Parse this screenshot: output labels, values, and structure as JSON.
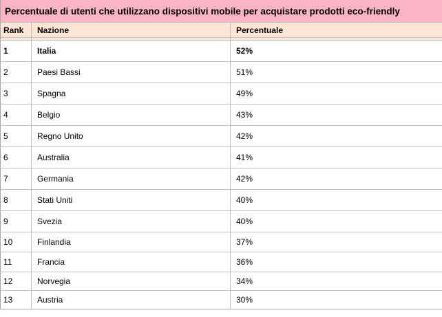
{
  "colors": {
    "title_bg": "#FBB4C5",
    "header_bg": "#FCE4D6",
    "grid_border": "#BFBFBF",
    "outer_border": "#A6A6A6",
    "text": "#000000"
  },
  "chart_data": {
    "type": "table",
    "title": "Percentuale di utenti che utilizzano dispositivi mobile per acquistare prodotti eco-friendly",
    "columns": [
      "Rank",
      "Nazione",
      "Percentuale"
    ],
    "rows": [
      {
        "rank": "1",
        "nazione": "Italia",
        "percentuale": "52%",
        "bold": true
      },
      {
        "rank": "2",
        "nazione": "Paesi Bassi",
        "percentuale": "51%",
        "bold": false
      },
      {
        "rank": "3",
        "nazione": "Spagna",
        "percentuale": "49%",
        "bold": false
      },
      {
        "rank": "4",
        "nazione": "Belgio",
        "percentuale": "43%",
        "bold": false
      },
      {
        "rank": "5",
        "nazione": "Regno Unito",
        "percentuale": "42%",
        "bold": false
      },
      {
        "rank": "6",
        "nazione": "Australia",
        "percentuale": "41%",
        "bold": false
      },
      {
        "rank": "7",
        "nazione": "Germania",
        "percentuale": "42%",
        "bold": false
      },
      {
        "rank": "8",
        "nazione": "Stati Uniti",
        "percentuale": "40%",
        "bold": false
      },
      {
        "rank": "9",
        "nazione": "Svezia",
        "percentuale": "40%",
        "bold": false
      },
      {
        "rank": "10",
        "nazione": "Finlandia",
        "percentuale": "37%",
        "bold": false
      },
      {
        "rank": "11",
        "nazione": "Francia",
        "percentuale": "36%",
        "bold": false
      },
      {
        "rank": "12",
        "nazione": "Norvegia",
        "percentuale": "34%",
        "bold": false
      },
      {
        "rank": "13",
        "nazione": "Austria",
        "percentuale": "30%",
        "bold": false
      }
    ]
  }
}
